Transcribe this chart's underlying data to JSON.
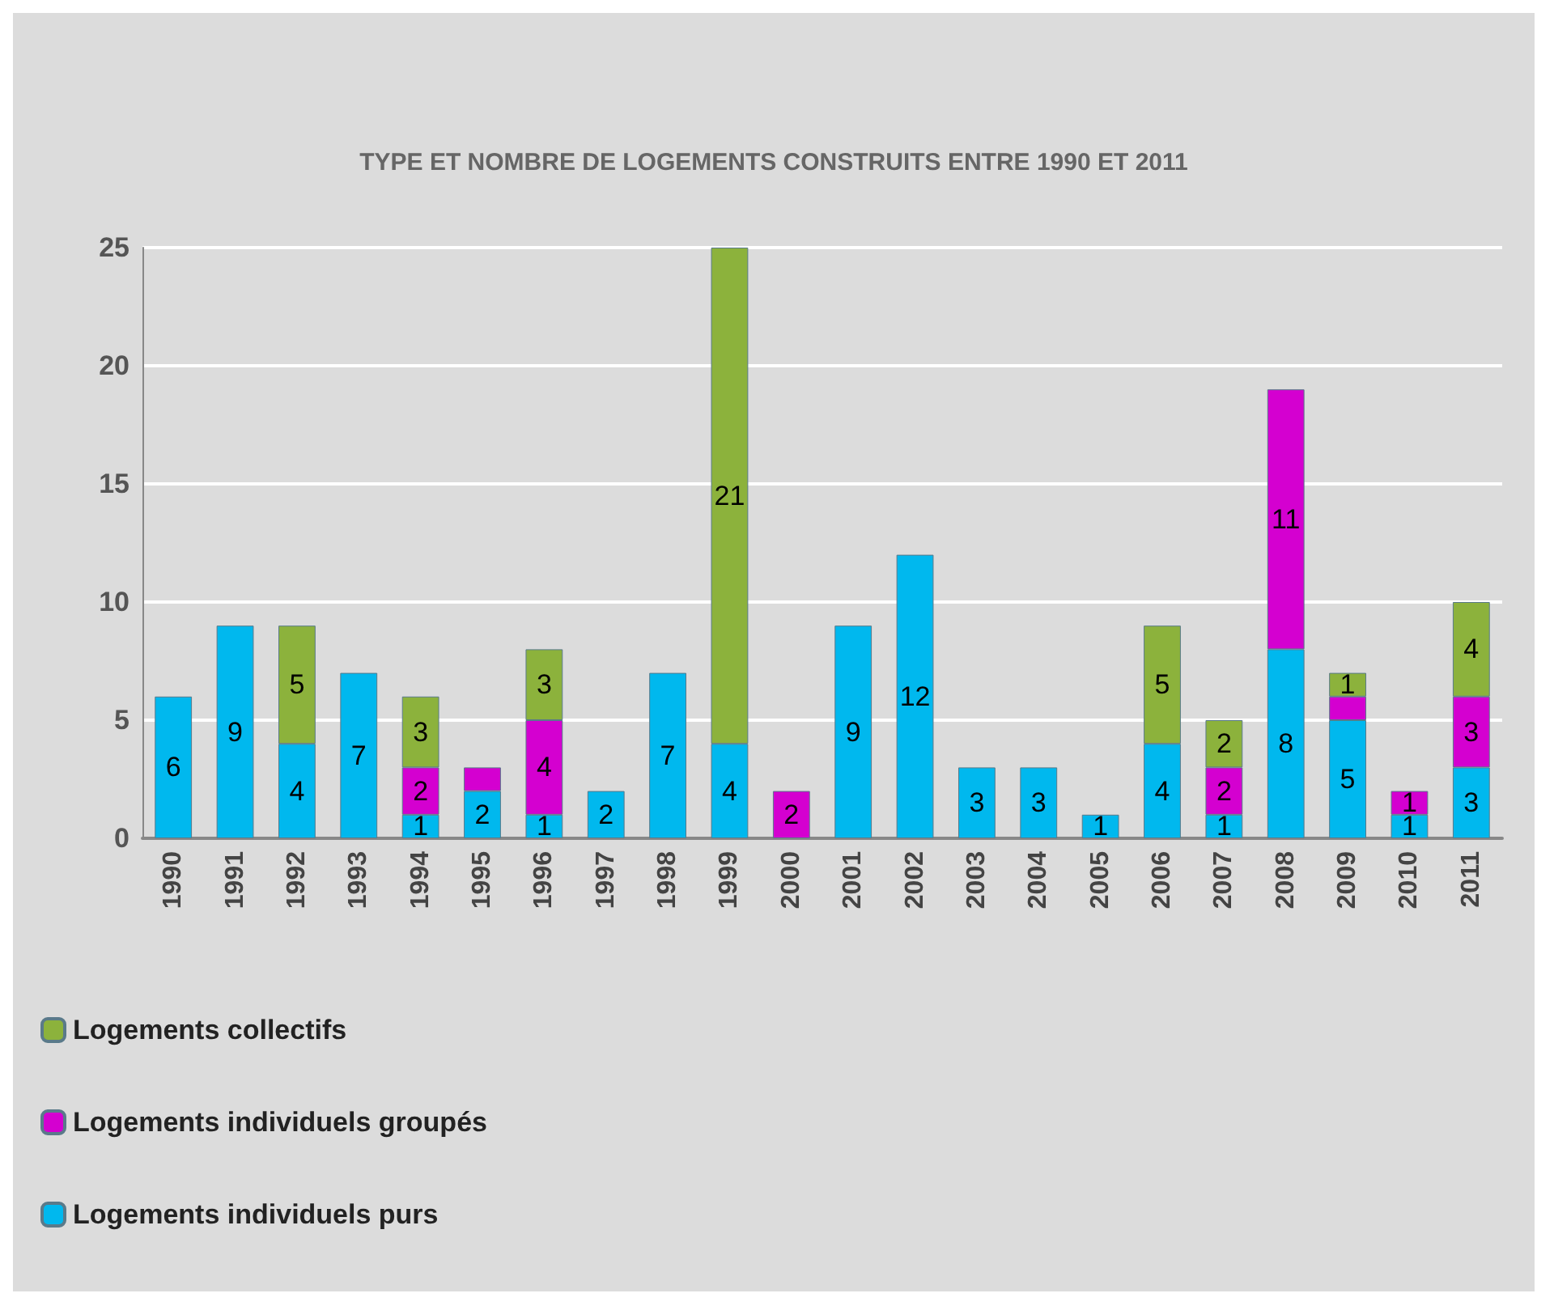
{
  "chart_data": {
    "type": "bar",
    "stacked": true,
    "title": "TYPE ET NOMBRE DE LOGEMENTS CONSTRUITS ENTRE 1990 ET 2011",
    "categories": [
      "1990",
      "1991",
      "1992",
      "1993",
      "1994",
      "1995",
      "1996",
      "1997",
      "1998",
      "1999",
      "2000",
      "2001",
      "2002",
      "2003",
      "2004",
      "2005",
      "2006",
      "2007",
      "2008",
      "2009",
      "2010",
      "2011"
    ],
    "series": [
      {
        "name": "Logements individuels purs",
        "color": "#00b8ee",
        "values": [
          6,
          9,
          4,
          7,
          1,
          2,
          1,
          2,
          7,
          4,
          null,
          9,
          12,
          3,
          3,
          1,
          4,
          1,
          8,
          5,
          1,
          3
        ],
        "value_labels": [
          "6",
          "9",
          "4",
          "7",
          "1",
          "2",
          "1",
          "2",
          "7",
          "4",
          null,
          "9",
          "12",
          "3",
          "3",
          "1",
          "4",
          "1",
          "8",
          "5",
          "1",
          "3"
        ]
      },
      {
        "name": "Logements individuels groupés",
        "color": "#d400d0",
        "values": [
          null,
          null,
          null,
          null,
          2,
          1,
          4,
          null,
          null,
          null,
          2,
          null,
          null,
          null,
          null,
          null,
          null,
          2,
          11,
          1,
          1,
          3
        ],
        "value_labels": [
          null,
          null,
          null,
          null,
          "2",
          null,
          "4",
          null,
          null,
          null,
          "2",
          null,
          null,
          null,
          null,
          null,
          null,
          "2",
          "11",
          null,
          "1",
          "3"
        ]
      },
      {
        "name": "Logements collectifs",
        "color": "#8cb23c",
        "values": [
          null,
          null,
          5,
          null,
          3,
          null,
          3,
          null,
          null,
          21,
          null,
          null,
          null,
          null,
          null,
          null,
          5,
          2,
          null,
          1,
          null,
          4
        ],
        "value_labels": [
          null,
          null,
          "5",
          null,
          "3",
          null,
          "3",
          null,
          null,
          "21",
          null,
          null,
          null,
          null,
          null,
          null,
          "5",
          "2",
          null,
          "1",
          null,
          "4"
        ]
      }
    ],
    "ylim": [
      0,
      25
    ],
    "yticks": [
      0,
      5,
      10,
      15,
      20,
      25
    ],
    "grid": "y",
    "legend": "bottom left"
  }
}
